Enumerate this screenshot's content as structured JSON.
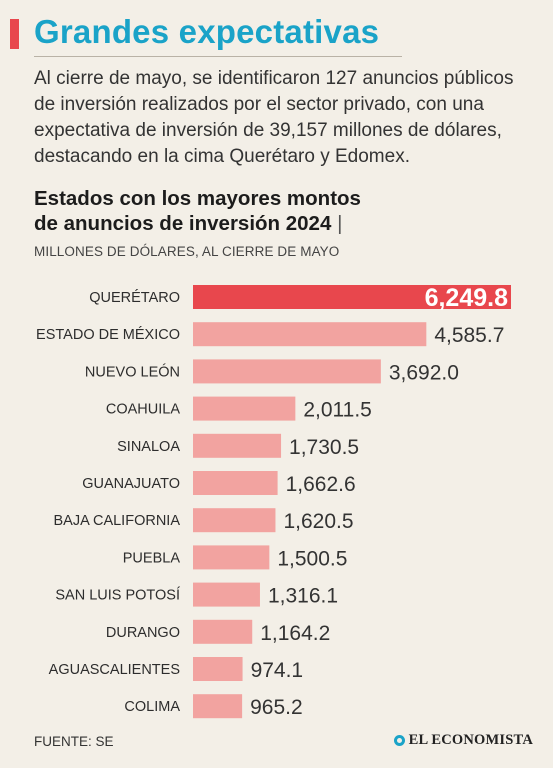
{
  "header": {
    "title": "Grandes expectativas",
    "intro": "Al cierre de mayo, se identificaron 127 anuncios públicos de inversión realizados por el sector privado, con una expectativa de inversión de 39,157 millones de dólares, destacando en la cima Querétaro y Edomex."
  },
  "chart_header": {
    "title_line1": "Estados con los mayores montos",
    "title_line2": "de anuncios de inversión 2024",
    "separator": "|",
    "units": "MILLONES DE DÓLARES, AL CIERRE DE MAYO"
  },
  "chart_data": {
    "type": "bar",
    "orientation": "horizontal",
    "title": "Estados con los mayores montos de anuncios de inversión 2024",
    "subtitle": "MILLONES DE DÓLARES, AL CIERRE DE MAYO",
    "categories": [
      "QUERÉTARO",
      "ESTADO DE MÉXICO",
      "NUEVO LEÓN",
      "COAHUILA",
      "SINALOA",
      "GUANAJUATO",
      "BAJA CALIFORNIA",
      "PUEBLA",
      "SAN LUIS POTOSÍ",
      "DURANGO",
      "AGUASCALIENTES",
      "COLIMA"
    ],
    "values": [
      6249.8,
      4585.7,
      3692.0,
      2011.5,
      1730.5,
      1662.6,
      1620.5,
      1500.5,
      1316.1,
      1164.2,
      974.1,
      965.2
    ],
    "value_labels": [
      "6,249.8",
      "4,585.7",
      "3,692.0",
      "2,011.5",
      "1,730.5",
      "1,662.6",
      "1,620.5",
      "1,500.5",
      "1,316.1",
      "1,164.2",
      "974.1",
      "965.2"
    ],
    "xlim": [
      0,
      6249.8
    ],
    "grid": false,
    "highlight_index": 0,
    "colors": {
      "highlight": "#e8474d",
      "bar": "#f2a3a0",
      "highlight_label": "#ffffff",
      "label": "#333333"
    }
  },
  "footer": {
    "source": "FUENTE: SE",
    "brand": "EL ECONOMISTA",
    "brand_icon": "el-economista-logo-icon"
  }
}
